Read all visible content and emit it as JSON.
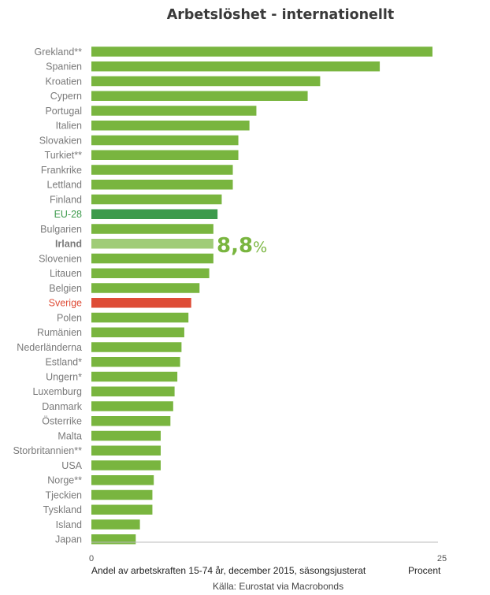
{
  "chart_data": {
    "type": "bar",
    "orientation": "horizontal",
    "title": "Arbetslöshet - internationellt",
    "categories": [
      "Grekland**",
      "Spanien",
      "Kroatien",
      "Cypern",
      "Portugal",
      "Italien",
      "Slovakien",
      "Turkiet**",
      "Frankrike",
      "Lettland",
      "Finland",
      "EU-28",
      "Bulgarien",
      "Irland",
      "Slovenien",
      "Litauen",
      "Belgien",
      "Sverige",
      "Polen",
      "Rumänien",
      "Nederländerna",
      "Estland*",
      "Ungern*",
      "Luxemburg",
      "Danmark",
      "Österrike",
      "Malta",
      "Storbritannien**",
      "USA",
      "Norge**",
      "Tjeckien",
      "Tyskland",
      "Island",
      "Japan"
    ],
    "values": [
      24.6,
      20.8,
      16.5,
      15.6,
      11.9,
      11.4,
      10.6,
      10.6,
      10.2,
      10.2,
      9.4,
      9.1,
      8.8,
      8.8,
      8.8,
      8.5,
      7.8,
      7.2,
      7.0,
      6.7,
      6.5,
      6.4,
      6.2,
      6.0,
      5.9,
      5.7,
      5.0,
      5.0,
      5.0,
      4.5,
      4.4,
      4.4,
      3.5,
      3.2
    ],
    "colors": [
      "#79b53f",
      "#79b53f",
      "#79b53f",
      "#79b53f",
      "#79b53f",
      "#79b53f",
      "#79b53f",
      "#79b53f",
      "#79b53f",
      "#79b53f",
      "#79b53f",
      "#3d9a4c",
      "#79b53f",
      "#a0cc78",
      "#79b53f",
      "#79b53f",
      "#79b53f",
      "#de4c36",
      "#79b53f",
      "#79b53f",
      "#79b53f",
      "#79b53f",
      "#79b53f",
      "#79b53f",
      "#79b53f",
      "#79b53f",
      "#79b53f",
      "#79b53f",
      "#79b53f",
      "#79b53f",
      "#79b53f",
      "#79b53f",
      "#79b53f",
      "#79b53f"
    ],
    "label_colors": [
      "#7a7a7a",
      "#7a7a7a",
      "#7a7a7a",
      "#7a7a7a",
      "#7a7a7a",
      "#7a7a7a",
      "#7a7a7a",
      "#7a7a7a",
      "#7a7a7a",
      "#7a7a7a",
      "#7a7a7a",
      "#3d9a4c",
      "#7a7a7a",
      "#7a7a7a",
      "#7a7a7a",
      "#7a7a7a",
      "#7a7a7a",
      "#de4c36",
      "#7a7a7a",
      "#7a7a7a",
      "#7a7a7a",
      "#7a7a7a",
      "#7a7a7a",
      "#7a7a7a",
      "#7a7a7a",
      "#7a7a7a",
      "#7a7a7a",
      "#7a7a7a",
      "#7a7a7a",
      "#7a7a7a",
      "#7a7a7a",
      "#7a7a7a",
      "#7a7a7a",
      "#7a7a7a"
    ],
    "bold_labels": [
      "Irland"
    ],
    "xlim": [
      0,
      25
    ],
    "x_ticks": [
      "0",
      "25"
    ],
    "xlabel": "Andel av arbetskraften 15-74 år, december 2015, säsongsjusterat",
    "x_unit_label": "Procent",
    "source": "Källa: Eurostat via Macrobonds",
    "callout": {
      "category": "Irland",
      "value_text": "8,8",
      "unit_text": "%",
      "color": "#79b53f"
    },
    "grid": false
  }
}
